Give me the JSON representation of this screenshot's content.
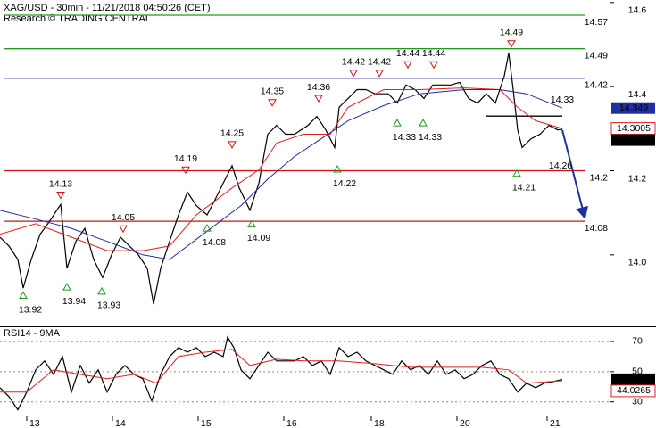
{
  "chart_data": [
    {
      "type": "line",
      "title": "XAG/USD - 30min - 11/21/2018 04:50:26 (CET)",
      "subtitle": "Research © TRADING CENTRAL",
      "xlim": [
        0,
        683
      ],
      "ylim": [
        13.83,
        14.606
      ],
      "yticks": [
        {
          "value": 14,
          "label": "14.0"
        },
        14.2,
        14.4,
        14.6
      ],
      "grid": false,
      "series": [
        {
          "color": "#000000",
          "box": true,
          "x": [
            0,
            10,
            20,
            26,
            35,
            45,
            55,
            68,
            75,
            85,
            95,
            105,
            115,
            125,
            135,
            145,
            155,
            165,
            172,
            180,
            190,
            200,
            210,
            220,
            232,
            240,
            250,
            260,
            268,
            280,
            290,
            300,
            310,
            320,
            330,
            345,
            355,
            365,
            375,
            380,
            390,
            400,
            410,
            420,
            435,
            445,
            455,
            465,
            475,
            485,
            495,
            505,
            515,
            525,
            535,
            545,
            555,
            565,
            570,
            575,
            580,
            585,
            595,
            605,
            615,
            625,
            630
          ],
          "values": [
            14.042,
            14.021,
            13.989,
            13.921,
            13.989,
            14.049,
            14.078,
            14.12,
            13.968,
            14.032,
            14.063,
            13.989,
            13.946,
            14.0,
            14.042,
            14.021,
            14.0,
            13.968,
            13.883,
            13.968,
            14.032,
            14.095,
            14.149,
            14.117,
            14.095,
            14.127,
            14.17,
            14.212,
            14.159,
            14.106,
            14.17,
            14.287,
            14.308,
            14.287,
            14.287,
            14.308,
            14.329,
            14.297,
            14.255,
            14.351,
            14.372,
            14.393,
            14.393,
            14.383,
            14.383,
            14.361,
            14.404,
            14.393,
            14.372,
            14.404,
            14.404,
            14.404,
            14.41,
            14.372,
            14.361,
            14.383,
            14.361,
            14.425,
            14.48,
            14.393,
            14.297,
            14.255,
            14.276,
            14.287,
            14.308,
            14.297,
            14.299
          ]
        },
        {
          "color": "#e02020",
          "box": false,
          "x": [
            0,
            40,
            80,
            120,
            160,
            190,
            220,
            260,
            290,
            310,
            340,
            370,
            390,
            430,
            470,
            520,
            560,
            580,
            600,
            630
          ],
          "values": [
            14.049,
            14.074,
            14.042,
            14.01,
            14.01,
            14.021,
            14.095,
            14.159,
            14.202,
            14.266,
            14.287,
            14.287,
            14.351,
            14.393,
            14.393,
            14.397,
            14.393,
            14.351,
            14.319,
            14.3005
          ]
        },
        {
          "color": "#1f2fa0",
          "box": true,
          "x": [
            0,
            40,
            80,
            120,
            160,
            190,
            230,
            270,
            300,
            330,
            360,
            390,
            430,
            470,
            520,
            560,
            590,
            630
          ],
          "values": [
            14.106,
            14.085,
            14.063,
            14.032,
            14.0,
            13.989,
            14.053,
            14.117,
            14.18,
            14.234,
            14.276,
            14.319,
            14.355,
            14.383,
            14.393,
            14.393,
            14.383,
            14.349
          ]
        }
      ],
      "levels": [
        {
          "value": 14.57,
          "color": "#1f9a1f"
        },
        {
          "value": 14.49,
          "color": "#1f9a1f"
        },
        {
          "value": 14.42,
          "color": "#1f2fa0"
        },
        {
          "value": 14.2,
          "color": "#d01010"
        },
        {
          "value": 14.08,
          "color": "#d01010"
        }
      ],
      "pivot": {
        "value": 14.33,
        "x": [
          545,
          630
        ],
        "color": "#000000"
      },
      "arrow": {
        "x": [
          630,
          655
        ],
        "values": [
          14.297,
          14.09
        ],
        "color": "#1f2fa0"
      },
      "annotations": [
        {
          "x": 68,
          "value": 14.13,
          "kind": "resistance"
        },
        {
          "x": 138,
          "value": 14.05,
          "kind": "resistance"
        },
        {
          "x": 208,
          "value": 14.19,
          "kind": "resistance"
        },
        {
          "x": 260,
          "value": 14.25,
          "kind": "resistance"
        },
        {
          "x": 305,
          "value": 14.35,
          "kind": "resistance"
        },
        {
          "x": 357,
          "value": 14.36,
          "kind": "resistance"
        },
        {
          "x": 396,
          "value": 14.42,
          "kind": "resistance"
        },
        {
          "x": 425,
          "value": 14.42,
          "kind": "resistance"
        },
        {
          "x": 457,
          "value": 14.44,
          "kind": "resistance"
        },
        {
          "x": 486,
          "value": 14.44,
          "kind": "resistance"
        },
        {
          "x": 573,
          "value": 14.49,
          "kind": "resistance"
        },
        {
          "x": 26,
          "value": 13.92,
          "kind": "support"
        },
        {
          "x": 75,
          "value": 13.94,
          "kind": "support"
        },
        {
          "x": 114,
          "value": 13.93,
          "kind": "support"
        },
        {
          "x": 232,
          "value": 14.08,
          "kind": "support"
        },
        {
          "x": 282,
          "value": 14.09,
          "kind": "support"
        },
        {
          "x": 378,
          "value": 14.22,
          "kind": "support"
        },
        {
          "x": 445,
          "value": 14.33,
          "kind": "support"
        },
        {
          "x": 474,
          "value": 14.33,
          "kind": "support"
        },
        {
          "x": 579,
          "value": 14.21,
          "kind": "support"
        }
      ],
      "notes": [
        {
          "x": 630,
          "value": 14.33,
          "anchor": "above"
        },
        {
          "x": 628,
          "value": 14.26,
          "anchor": "below"
        }
      ]
    },
    {
      "type": "line",
      "title": "RSI14 - 9MA",
      "xlim": [
        0,
        683
      ],
      "ylim": [
        21,
        79.4
      ],
      "yticks": [
        30,
        50,
        70
      ],
      "grid": true,
      "xticks": [
        {
          "value": 30,
          "label": "13"
        },
        {
          "value": 126,
          "label": "14"
        },
        {
          "value": 222,
          "label": "15"
        },
        {
          "value": 318,
          "label": "16"
        },
        {
          "value": 416,
          "label": "18"
        },
        {
          "value": 512,
          "label": "20"
        },
        {
          "value": 613,
          "label": "21"
        }
      ],
      "series": [
        {
          "color": "#000000",
          "box": true,
          "x": [
            0,
            10,
            20,
            30,
            40,
            50,
            60,
            70,
            80,
            90,
            100,
            110,
            120,
            130,
            140,
            150,
            160,
            170,
            180,
            190,
            200,
            210,
            220,
            230,
            240,
            250,
            255,
            262,
            270,
            280,
            290,
            300,
            310,
            320,
            330,
            340,
            350,
            360,
            370,
            380,
            390,
            400,
            410,
            420,
            430,
            440,
            450,
            460,
            470,
            480,
            490,
            500,
            510,
            520,
            530,
            540,
            550,
            560,
            570,
            580,
            590,
            600,
            610,
            620,
            630
          ],
          "values": [
            39.4,
            33.5,
            24.7,
            36.5,
            51.2,
            57.1,
            48.2,
            60.0,
            36.5,
            54.1,
            42.4,
            51.2,
            36.5,
            48.2,
            54.1,
            48.2,
            45.3,
            30.6,
            48.2,
            60.0,
            65.9,
            62.9,
            65.9,
            60.0,
            62.9,
            60.0,
            72.9,
            65.9,
            51.2,
            45.3,
            54.1,
            62.9,
            57.1,
            57.1,
            57.1,
            60.0,
            54.1,
            57.1,
            48.2,
            65.9,
            60.0,
            62.9,
            57.1,
            54.1,
            51.2,
            48.2,
            57.1,
            51.2,
            54.1,
            48.2,
            57.1,
            48.2,
            51.2,
            45.3,
            48.2,
            54.1,
            57.1,
            48.2,
            45.3,
            36.5,
            42.4,
            39.4,
            42.4,
            43.5,
            44.9599
          ]
        },
        {
          "color": "#e02020",
          "box": false,
          "x": [
            0,
            30,
            60,
            90,
            120,
            150,
            175,
            200,
            230,
            260,
            280,
            310,
            340,
            380,
            420,
            460,
            500,
            540,
            570,
            590,
            630
          ],
          "values": [
            36.5,
            36.5,
            51.2,
            48.2,
            45.3,
            48.2,
            42.4,
            60.0,
            62.9,
            64.7,
            54.1,
            58.2,
            57.1,
            57.1,
            55.3,
            52.9,
            52.9,
            52.9,
            51.2,
            42.4,
            44.0265
          ]
        }
      ]
    }
  ]
}
